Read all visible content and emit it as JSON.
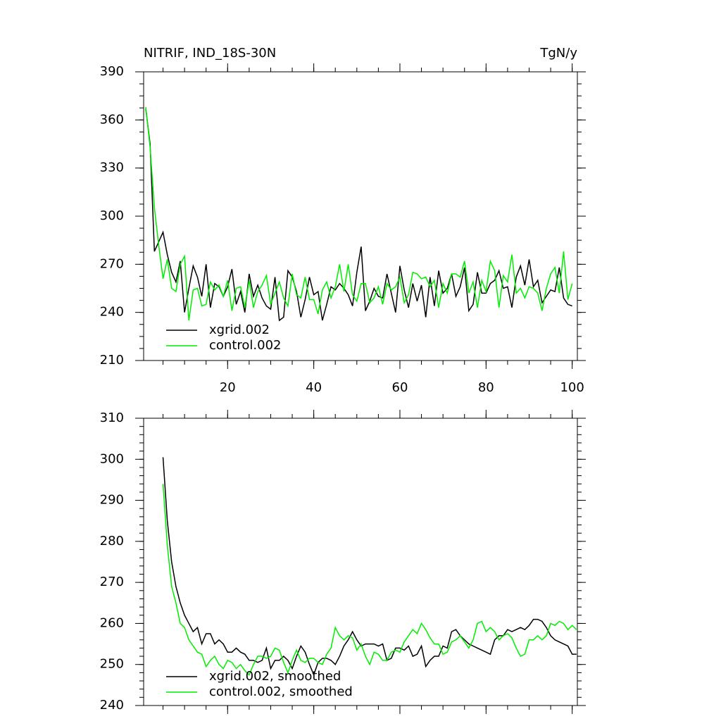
{
  "chart_data": [
    {
      "type": "line",
      "title": "NITRIF, IND_18S-30N",
      "units": "TgN/y",
      "legend_corner": "lower left",
      "xlim": [
        0.5,
        101.2
      ],
      "ylim": [
        210,
        390
      ],
      "xticks": [
        20,
        40,
        60,
        80,
        100
      ],
      "yticks": [
        210,
        240,
        270,
        300,
        330,
        360,
        390
      ],
      "show_xtick_labels": true,
      "x": [
        1,
        2,
        3,
        4,
        5,
        6,
        7,
        8,
        9,
        10,
        11,
        12,
        13,
        14,
        15,
        16,
        17,
        18,
        19,
        20,
        21,
        22,
        23,
        24,
        25,
        26,
        27,
        28,
        29,
        30,
        31,
        32,
        33,
        34,
        35,
        36,
        37,
        38,
        39,
        40,
        41,
        42,
        43,
        44,
        45,
        46,
        47,
        48,
        49,
        50,
        51,
        52,
        53,
        54,
        55,
        56,
        57,
        58,
        59,
        60,
        61,
        62,
        63,
        64,
        65,
        66,
        67,
        68,
        69,
        70,
        71,
        72,
        73,
        74,
        75,
        76,
        77,
        78,
        79,
        80,
        81,
        82,
        83,
        84,
        85,
        86,
        87,
        88,
        89,
        90,
        91,
        92,
        93,
        94,
        95,
        96,
        97,
        98,
        99,
        100
      ],
      "series": [
        {
          "name": "xgrid.002",
          "color": "#000000",
          "values": [
            367,
            345,
            278,
            284,
            290,
            276,
            265,
            259,
            272,
            240,
            255,
            269,
            262,
            250,
            270,
            243,
            258,
            256,
            250,
            256,
            267,
            245,
            253,
            240,
            264,
            250,
            257,
            249,
            244,
            242,
            262,
            235,
            237,
            266,
            262,
            253,
            237,
            248,
            262,
            251,
            253,
            235,
            245,
            256,
            254,
            258,
            255,
            251,
            244,
            265,
            281,
            241,
            247,
            255,
            250,
            249,
            264,
            252,
            240,
            269,
            254,
            243,
            258,
            247,
            257,
            237,
            262,
            244,
            266,
            252,
            255,
            264,
            250,
            256,
            268,
            241,
            245,
            265,
            252,
            252,
            258,
            260,
            266,
            255,
            256,
            243,
            262,
            269,
            257,
            273,
            256,
            260,
            246,
            250,
            254,
            253,
            268,
            249,
            245,
            244
          ]
        },
        {
          "name": "control.002",
          "color": "#00ee00",
          "values": [
            368,
            343,
            305,
            282,
            261,
            273,
            255,
            253,
            270,
            275,
            235,
            254,
            255,
            244,
            245,
            259,
            254,
            257,
            250,
            260,
            241,
            255,
            256,
            243,
            260,
            243,
            253,
            257,
            263,
            245,
            252,
            259,
            249,
            244,
            264,
            251,
            249,
            262,
            248,
            248,
            239,
            254,
            259,
            249,
            256,
            270,
            253,
            270,
            251,
            247,
            258,
            258,
            246,
            249,
            256,
            245,
            258,
            254,
            256,
            262,
            246,
            251,
            265,
            264,
            261,
            262,
            256,
            260,
            243,
            258,
            252,
            264,
            264,
            262,
            272,
            252,
            259,
            243,
            260,
            253,
            272,
            266,
            243,
            263,
            259,
            276,
            252,
            255,
            249,
            256,
            255,
            252,
            241,
            255,
            264,
            268,
            252,
            278,
            248,
            258
          ]
        }
      ]
    },
    {
      "type": "line",
      "legend_corner": "lower left",
      "xlim": [
        0.5,
        101.2
      ],
      "ylim": [
        240,
        310
      ],
      "xticks": [
        20,
        40,
        60,
        80,
        100
      ],
      "yticks": [
        240,
        250,
        260,
        270,
        280,
        290,
        300,
        310
      ],
      "show_xtick_labels": false,
      "x": [
        5,
        6,
        7,
        8,
        9,
        10,
        11,
        12,
        13,
        14,
        15,
        16,
        17,
        18,
        19,
        20,
        21,
        22,
        23,
        24,
        25,
        26,
        27,
        28,
        29,
        30,
        31,
        32,
        33,
        34,
        35,
        36,
        37,
        38,
        39,
        40,
        41,
        42,
        43,
        44,
        45,
        46,
        47,
        48,
        49,
        50,
        51,
        52,
        53,
        54,
        55,
        56,
        57,
        58,
        59,
        60,
        61,
        62,
        63,
        64,
        65,
        66,
        67,
        68,
        69,
        70,
        71,
        72,
        73,
        74,
        75,
        76,
        77,
        78,
        79,
        80,
        81,
        82,
        83,
        84,
        85,
        86,
        87,
        88,
        89,
        90,
        91,
        92,
        93,
        94,
        95,
        96,
        97,
        98,
        99,
        100,
        101
      ],
      "series": [
        {
          "name": "xgrid.002, smoothed",
          "color": "#000000",
          "values": [
            300.5,
            285,
            275,
            269,
            265,
            262,
            260,
            258,
            259,
            255,
            257.5,
            257.5,
            255,
            256,
            255,
            253,
            253,
            254,
            253,
            252.5,
            251,
            251,
            250.5,
            251,
            254,
            249,
            251,
            251,
            252,
            251,
            249,
            252,
            254.5,
            253,
            250,
            247.5,
            250.5,
            251.5,
            251.5,
            251,
            250,
            252,
            254.5,
            256,
            258,
            256,
            254.5,
            255,
            255,
            255,
            254.5,
            255,
            251,
            251.5,
            254,
            254,
            253.5,
            254.5,
            252,
            252.5,
            254.5,
            249.5,
            251,
            252,
            252,
            254.5,
            254,
            258,
            258.5,
            257,
            256,
            255,
            254.5,
            254,
            253.5,
            253,
            252.5,
            256,
            257,
            257,
            258.5,
            258,
            258.5,
            259,
            258.5,
            259.5,
            261,
            261,
            260.5,
            259,
            257,
            256,
            255.5,
            255,
            254.5,
            252.5,
            252.5
          ]
        },
        {
          "name": "control.002, smoothed",
          "color": "#00ee00",
          "values": [
            294,
            279,
            269,
            265,
            260,
            259,
            256,
            254.5,
            253,
            252.5,
            249.5,
            251,
            252,
            250,
            249,
            251,
            250.5,
            249,
            250,
            248.5,
            247.5,
            250,
            252,
            252,
            251.5,
            252,
            254,
            253.5,
            250.5,
            248,
            251,
            253.5,
            251,
            250.5,
            251.5,
            251.5,
            250.5,
            250,
            252.5,
            254,
            259,
            257,
            256,
            257,
            256.5,
            253.5,
            255,
            252,
            250,
            253,
            252.5,
            251,
            251,
            253,
            253.5,
            253,
            255.5,
            257,
            258.5,
            257.5,
            260,
            258.5,
            256.5,
            255,
            255,
            252.5,
            253,
            255.5,
            256,
            257,
            255.5,
            254,
            256,
            260,
            260.5,
            258,
            259,
            258,
            256,
            257,
            257.5,
            256.5,
            254,
            252,
            252.5,
            256,
            256,
            257,
            256,
            257,
            260,
            259.5,
            260.5,
            260,
            258.5,
            259.5,
            258.5
          ]
        }
      ]
    }
  ]
}
